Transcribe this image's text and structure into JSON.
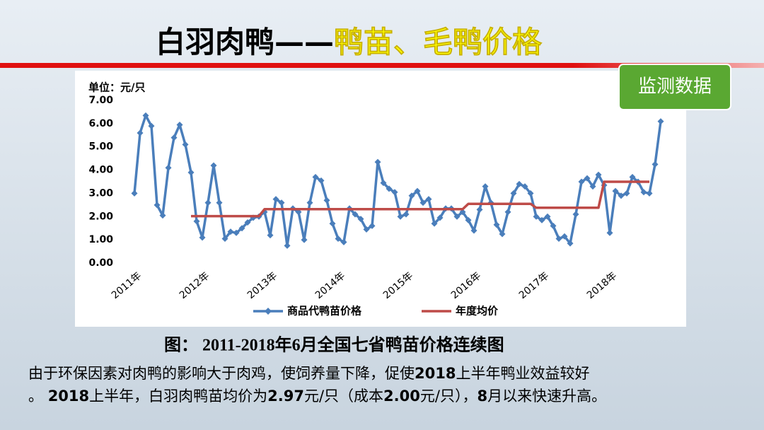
{
  "header": {
    "title_black": "白羽肉鸭——",
    "title_yellow": "鸭苗、毛鸭价格",
    "badge": "监测数据"
  },
  "chart_data": {
    "type": "line",
    "y_label": "单位：元/只",
    "categories": [
      "2011年",
      null,
      null,
      null,
      null,
      null,
      null,
      null,
      null,
      null,
      null,
      null,
      "2012年",
      null,
      null,
      null,
      null,
      null,
      null,
      null,
      null,
      null,
      null,
      null,
      "2013年",
      null,
      null,
      null,
      null,
      null,
      null,
      null,
      null,
      null,
      null,
      null,
      "2014年",
      null,
      null,
      null,
      null,
      null,
      null,
      null,
      null,
      null,
      null,
      null,
      "2015年",
      null,
      null,
      null,
      null,
      null,
      null,
      null,
      null,
      null,
      null,
      null,
      "2016年",
      null,
      null,
      null,
      null,
      null,
      null,
      null,
      null,
      null,
      null,
      null,
      "2017年",
      null,
      null,
      null,
      null,
      null,
      null,
      null,
      null,
      null,
      null,
      null,
      "2018年",
      null,
      null,
      null,
      null,
      null,
      null,
      null,
      null,
      null
    ],
    "series": [
      {
        "name": "商品代鸭苗价格",
        "color": "#4a7ebb",
        "marker": "diamond",
        "values": [
          3.0,
          5.6,
          6.35,
          5.9,
          2.5,
          2.05,
          4.1,
          5.4,
          5.95,
          5.1,
          3.9,
          1.8,
          1.1,
          2.6,
          4.2,
          2.6,
          1.05,
          1.35,
          1.3,
          1.5,
          1.75,
          1.95,
          2.0,
          2.2,
          1.2,
          2.75,
          2.6,
          0.75,
          2.35,
          2.2,
          1.0,
          2.6,
          3.7,
          3.55,
          2.7,
          1.7,
          1.05,
          0.9,
          2.35,
          2.1,
          1.9,
          1.45,
          1.6,
          4.35,
          3.45,
          3.2,
          3.05,
          2.0,
          2.1,
          2.9,
          3.1,
          2.6,
          2.75,
          1.7,
          1.95,
          2.35,
          2.35,
          2.0,
          2.2,
          1.85,
          1.4,
          2.3,
          3.3,
          2.6,
          1.65,
          1.25,
          2.2,
          3.0,
          3.4,
          3.3,
          3.0,
          2.0,
          1.85,
          2.0,
          1.6,
          1.05,
          1.15,
          0.85,
          2.1,
          3.5,
          3.65,
          3.3,
          3.8,
          3.35,
          1.3,
          3.1,
          2.9,
          3.0,
          3.7,
          3.5,
          3.05,
          3.0,
          4.25,
          6.1
        ]
      },
      {
        "name": "年度均价",
        "color": "#be4b48",
        "values": [
          null,
          null,
          null,
          null,
          null,
          null,
          null,
          null,
          null,
          null,
          2.02,
          2.02,
          2.02,
          2.02,
          2.02,
          2.02,
          2.02,
          2.02,
          2.02,
          2.02,
          2.02,
          2.02,
          2.02,
          2.32,
          2.32,
          2.32,
          2.32,
          2.32,
          2.32,
          2.32,
          2.32,
          2.32,
          2.32,
          2.32,
          2.32,
          2.32,
          2.32,
          2.32,
          2.32,
          2.32,
          2.32,
          2.32,
          2.32,
          2.32,
          2.32,
          2.32,
          2.32,
          2.32,
          2.32,
          2.32,
          2.32,
          2.32,
          2.32,
          2.32,
          2.32,
          2.32,
          2.32,
          2.32,
          2.32,
          2.55,
          2.55,
          2.55,
          2.55,
          2.55,
          2.55,
          2.55,
          2.55,
          2.55,
          2.55,
          2.55,
          2.55,
          2.38,
          2.38,
          2.38,
          2.38,
          2.38,
          2.38,
          2.38,
          2.38,
          2.38,
          2.38,
          2.38,
          2.38,
          3.5,
          3.5,
          3.5,
          3.5,
          3.5,
          3.5,
          3.5,
          3.5,
          3.5,
          null,
          null
        ]
      }
    ],
    "ylim": [
      0,
      7
    ],
    "yticks": [
      {
        "value": 0,
        "label": "0.00"
      },
      {
        "value": 1,
        "label": "1.00"
      },
      {
        "value": 2,
        "label": "2.00"
      },
      {
        "value": 3,
        "label": "3.00"
      },
      {
        "value": 4,
        "label": "4.00"
      },
      {
        "value": 5,
        "label": "5.00"
      },
      {
        "value": 6,
        "label": "6.00"
      },
      {
        "value": 7,
        "label": "7.00"
      }
    ],
    "legend": "bottom"
  },
  "caption": "图： 2011-2018年6月全国七省鸭苗价格连续图",
  "body": [
    "由于环保因素对肉鸭的影响大于肉鸡，使饲养量下降，促使",
    "2018",
    "上半年鸭业效益较好",
    "。 ",
    "2018",
    "上半年，白羽肉鸭苗均价为",
    "2.97",
    "元/只（成本",
    "2.00",
    "元/只），",
    "8",
    "月以来快速升高。"
  ]
}
